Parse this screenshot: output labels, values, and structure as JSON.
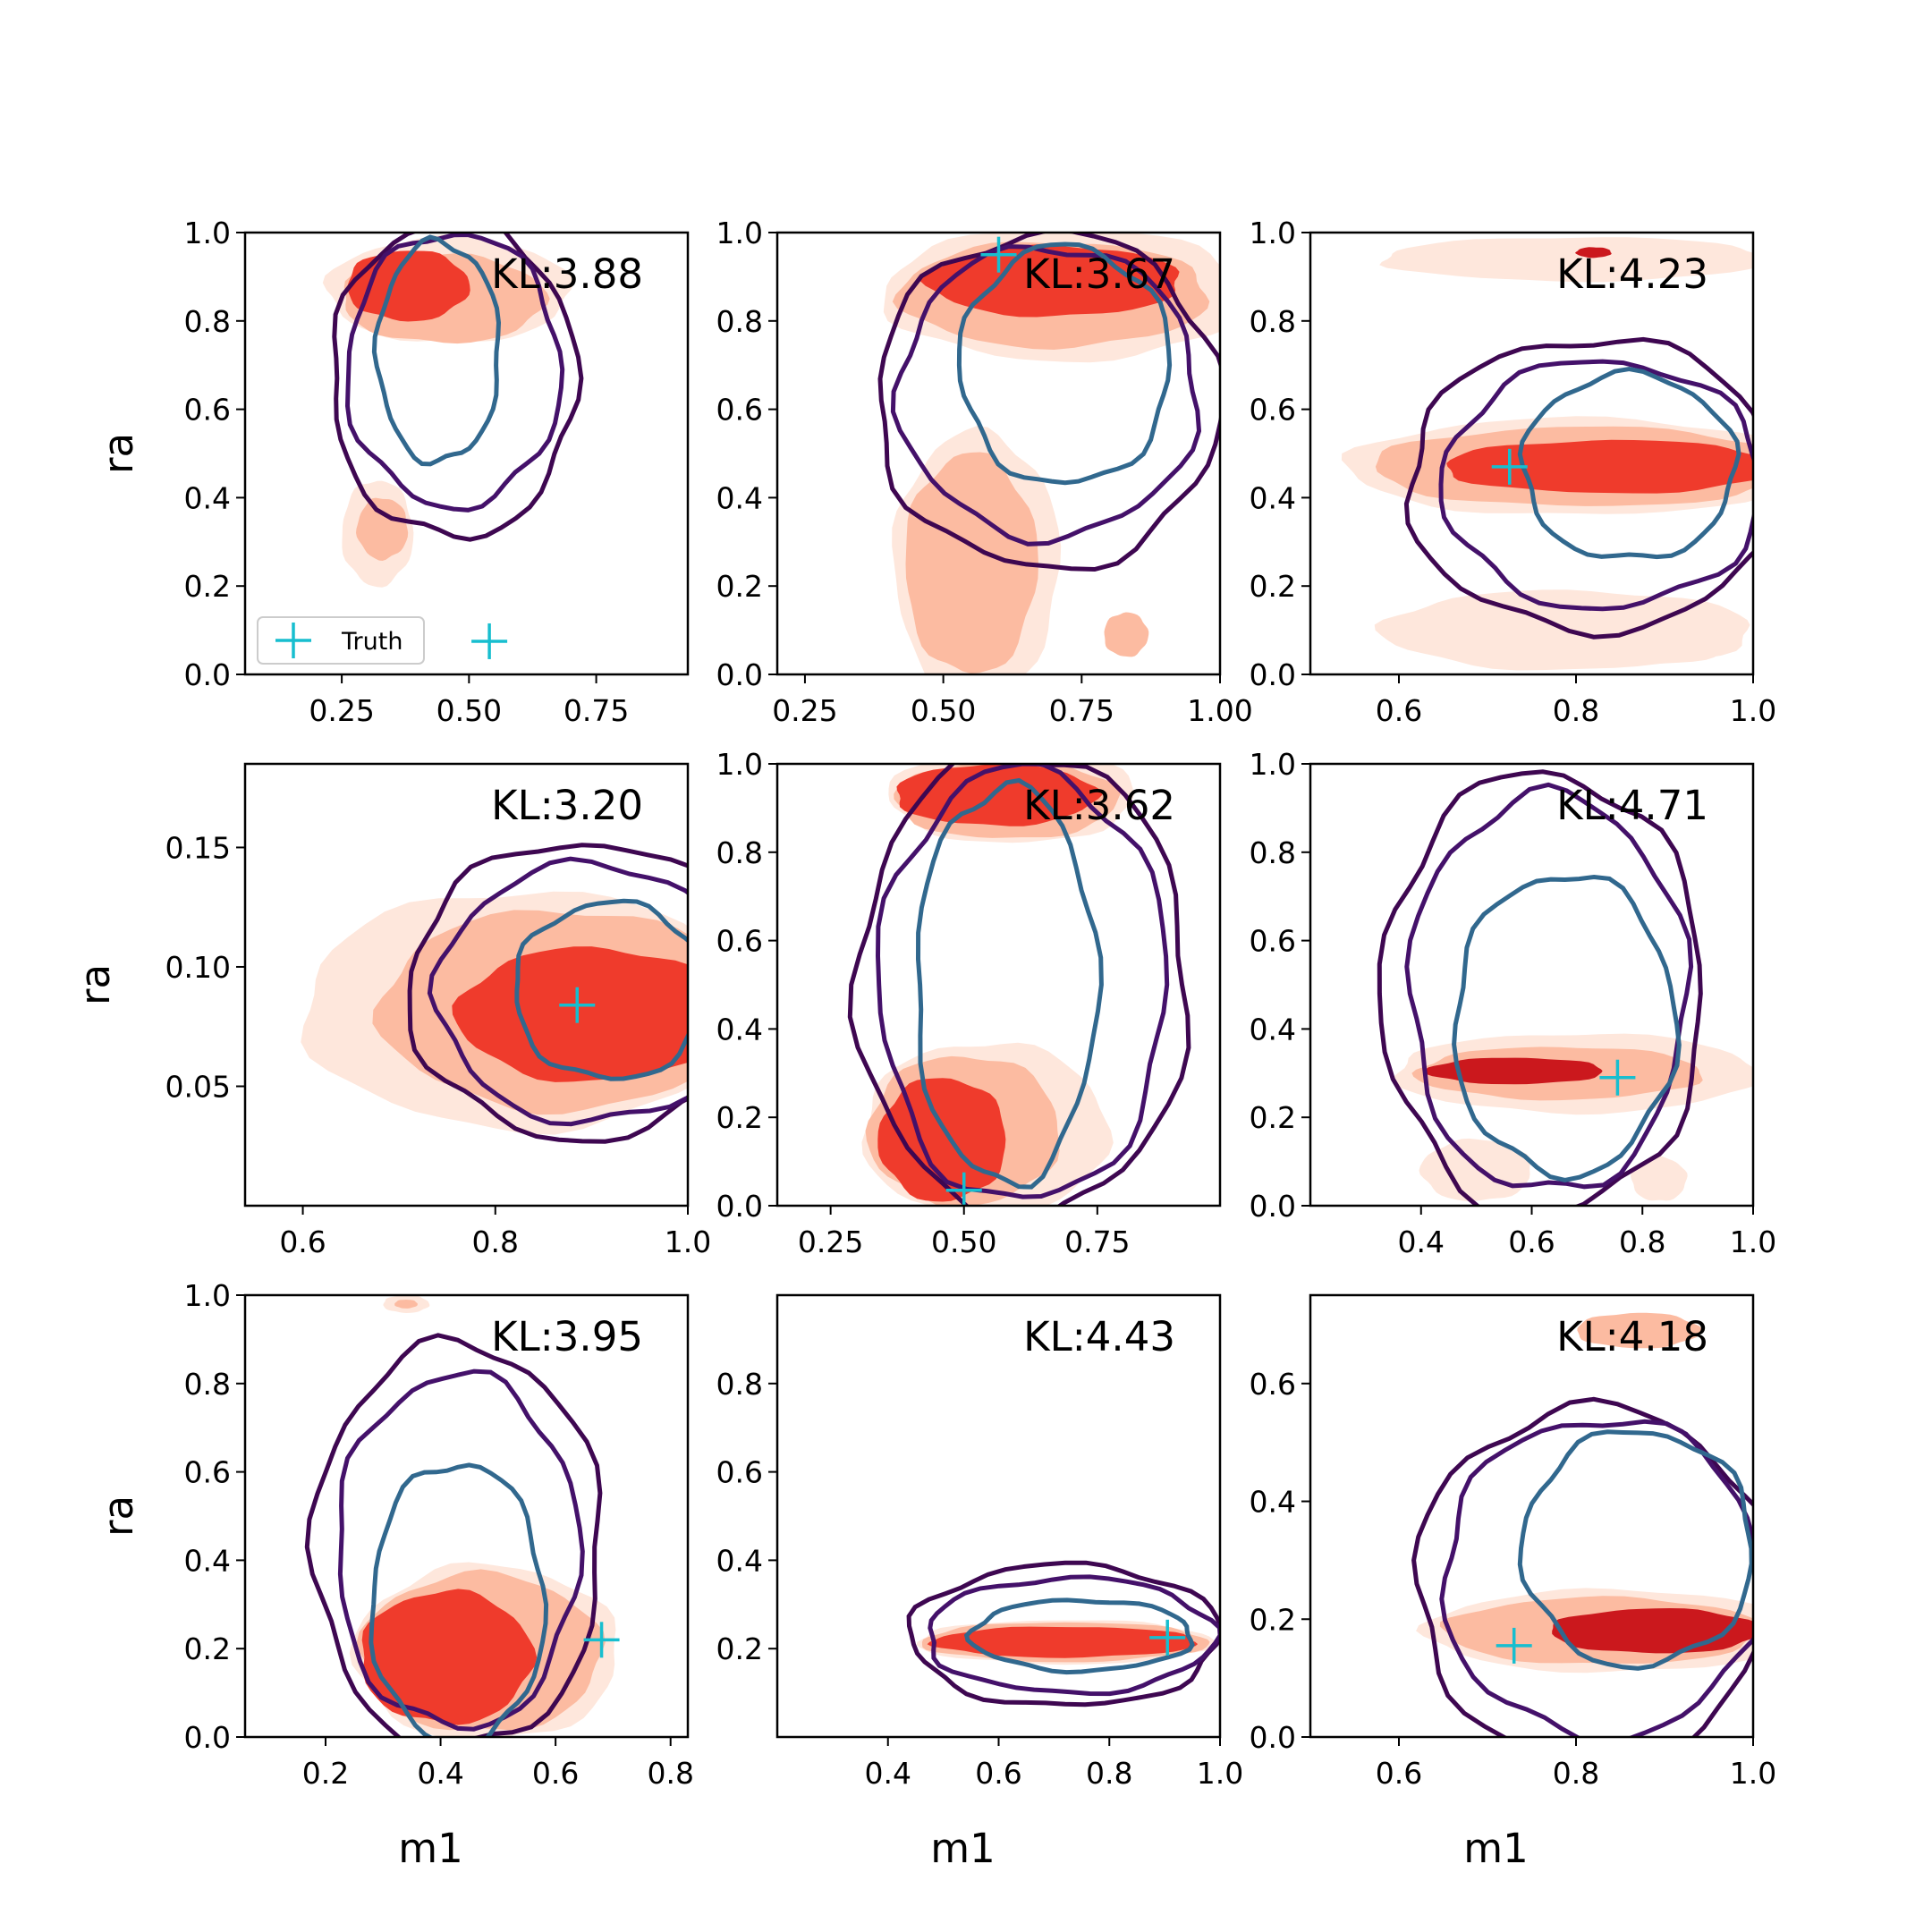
{
  "figure": {
    "legend_label": "Truth",
    "legend_placement": "lower-left",
    "legend_panel": 0
  },
  "colors": {
    "fill_levels": [
      "#fee7dc",
      "#fcbba1",
      "#ef3b2c",
      "#cb181d"
    ],
    "contour_levels": [
      "#3e0751",
      "#44116a",
      "#31688e"
    ],
    "truth_marker": "#17becf"
  },
  "chart_data": [
    {
      "type": "contour",
      "xlabel": "",
      "ylabel": "ra",
      "xlim": [
        0.06,
        0.93
      ],
      "ylim": [
        0,
        1
      ],
      "xticks": [
        "0.25",
        "0.50",
        "0.75"
      ],
      "xtick_values": [
        0.25,
        0.5,
        0.75
      ],
      "yticks": [
        "0.0",
        "0.2",
        "0.4",
        "0.6",
        "0.8",
        "1.0"
      ],
      "ytick_values": [
        0,
        0.2,
        0.4,
        0.6,
        0.8,
        1.0
      ],
      "kl_label": "KL:3.88",
      "truth": {
        "x": 0.54,
        "y": 0.075
      },
      "fills": [
        {
          "level": 0,
          "cx": 0.46,
          "cy": 0.87,
          "rx": 0.24,
          "ry": 0.12
        },
        {
          "level": 1,
          "cx": 0.45,
          "cy": 0.85,
          "rx": 0.2,
          "ry": 0.1
        },
        {
          "level": 2,
          "cx": 0.38,
          "cy": 0.88,
          "rx": 0.12,
          "ry": 0.08
        },
        {
          "level": 0,
          "cx": 0.32,
          "cy": 0.32,
          "rx": 0.07,
          "ry": 0.12
        },
        {
          "level": 1,
          "cx": 0.33,
          "cy": 0.33,
          "rx": 0.05,
          "ry": 0.07
        }
      ],
      "contours": [
        {
          "level": 0,
          "cx": 0.47,
          "cy": 0.67,
          "rx": 0.24,
          "ry": 0.36
        },
        {
          "level": 1,
          "cx": 0.47,
          "cy": 0.69,
          "rx": 0.21,
          "ry": 0.31
        },
        {
          "level": 2,
          "cx": 0.44,
          "cy": 0.73,
          "rx": 0.12,
          "ry": 0.25
        }
      ]
    },
    {
      "type": "contour",
      "xlabel": "",
      "ylabel": "",
      "xlim": [
        0.2,
        1.0
      ],
      "ylim": [
        0,
        1
      ],
      "xticks": [
        "0.25",
        "0.50",
        "0.75",
        "1.00"
      ],
      "xtick_values": [
        0.25,
        0.5,
        0.75,
        1.0
      ],
      "yticks": [
        "0.0",
        "0.2",
        "0.4",
        "0.6",
        "0.8",
        "1.0"
      ],
      "ytick_values": [
        0,
        0.2,
        0.4,
        0.6,
        0.8,
        1.0
      ],
      "kl_label": "KL:3.67",
      "truth": {
        "x": 0.6,
        "y": 0.95
      },
      "fills": [
        {
          "level": 0,
          "cx": 0.72,
          "cy": 0.86,
          "rx": 0.33,
          "ry": 0.15
        },
        {
          "level": 1,
          "cx": 0.7,
          "cy": 0.86,
          "rx": 0.28,
          "ry": 0.12
        },
        {
          "level": 2,
          "cx": 0.7,
          "cy": 0.89,
          "rx": 0.23,
          "ry": 0.08
        },
        {
          "level": 0,
          "cx": 0.56,
          "cy": 0.25,
          "rx": 0.15,
          "ry": 0.3
        },
        {
          "level": 1,
          "cx": 0.55,
          "cy": 0.25,
          "rx": 0.12,
          "ry": 0.25
        },
        {
          "level": 1,
          "cx": 0.83,
          "cy": 0.09,
          "rx": 0.04,
          "ry": 0.05
        }
      ],
      "contours": [
        {
          "level": 0,
          "cx": 0.69,
          "cy": 0.62,
          "rx": 0.31,
          "ry": 0.38
        },
        {
          "level": 1,
          "cx": 0.69,
          "cy": 0.64,
          "rx": 0.27,
          "ry": 0.33
        },
        {
          "level": 2,
          "cx": 0.72,
          "cy": 0.7,
          "rx": 0.19,
          "ry": 0.27
        }
      ]
    },
    {
      "type": "contour",
      "xlabel": "",
      "ylabel": "",
      "xlim": [
        0.5,
        1.0
      ],
      "ylim": [
        0,
        1
      ],
      "xticks": [
        "0.6",
        "0.8",
        "1.0"
      ],
      "xtick_values": [
        0.6,
        0.8,
        1.0
      ],
      "yticks": [
        "0.0",
        "0.2",
        "0.4",
        "0.6",
        "0.8",
        "1.0"
      ],
      "ytick_values": [
        0,
        0.2,
        0.4,
        0.6,
        0.8,
        1.0
      ],
      "kl_label": "KL:4.23",
      "truth": {
        "x": 0.725,
        "y": 0.47
      },
      "fills": [
        {
          "level": 0,
          "cx": 0.8,
          "cy": 0.47,
          "rx": 0.26,
          "ry": 0.11
        },
        {
          "level": 1,
          "cx": 0.81,
          "cy": 0.47,
          "rx": 0.24,
          "ry": 0.09
        },
        {
          "level": 2,
          "cx": 0.84,
          "cy": 0.47,
          "rx": 0.19,
          "ry": 0.06
        },
        {
          "level": 0,
          "cx": 0.8,
          "cy": 0.94,
          "rx": 0.22,
          "ry": 0.05
        },
        {
          "level": 3,
          "cx": 0.82,
          "cy": 0.955,
          "rx": 0.02,
          "ry": 0.012
        },
        {
          "level": 0,
          "cx": 0.79,
          "cy": 0.1,
          "rx": 0.21,
          "ry": 0.09
        },
        {
          "level": 0,
          "cx": 0.85,
          "cy": 0.07,
          "rx": 0.13,
          "ry": 0.05
        }
      ],
      "contours": [
        {
          "level": 0,
          "cx": 0.82,
          "cy": 0.43,
          "rx": 0.21,
          "ry": 0.33
        },
        {
          "level": 1,
          "cx": 0.83,
          "cy": 0.43,
          "rx": 0.18,
          "ry": 0.28
        },
        {
          "level": 2,
          "cx": 0.86,
          "cy": 0.47,
          "rx": 0.12,
          "ry": 0.21
        }
      ]
    },
    {
      "type": "contour",
      "xlabel": "",
      "ylabel": "ra",
      "xlim": [
        0.54,
        1.0
      ],
      "ylim": [
        0.0,
        0.185
      ],
      "xticks": [
        "0.6",
        "0.8",
        "1.0"
      ],
      "xtick_values": [
        0.6,
        0.8,
        1.0
      ],
      "yticks": [
        "0.05",
        "0.10",
        "0.15"
      ],
      "ytick_values": [
        0.05,
        0.1,
        0.15
      ],
      "kl_label": "KL:3.20",
      "truth": {
        "x": 0.885,
        "y": 0.084
      },
      "fills": [
        {
          "level": 0,
          "cx": 0.83,
          "cy": 0.082,
          "rx": 0.23,
          "ry": 0.05
        },
        {
          "level": 1,
          "cx": 0.87,
          "cy": 0.082,
          "rx": 0.19,
          "ry": 0.042
        },
        {
          "level": 2,
          "cx": 0.9,
          "cy": 0.08,
          "rx": 0.14,
          "ry": 0.028
        }
      ],
      "contours": [
        {
          "level": 0,
          "cx": 0.89,
          "cy": 0.09,
          "rx": 0.18,
          "ry": 0.062
        },
        {
          "level": 1,
          "cx": 0.9,
          "cy": 0.089,
          "rx": 0.16,
          "ry": 0.054
        },
        {
          "level": 2,
          "cx": 0.92,
          "cy": 0.09,
          "rx": 0.1,
          "ry": 0.037
        }
      ]
    },
    {
      "type": "contour",
      "xlabel": "",
      "ylabel": "",
      "xlim": [
        0.15,
        0.98
      ],
      "ylim": [
        0,
        1
      ],
      "xticks": [
        "0.25",
        "0.50",
        "0.75"
      ],
      "xtick_values": [
        0.25,
        0.5,
        0.75
      ],
      "yticks": [
        "0.0",
        "0.2",
        "0.4",
        "0.6",
        "0.8",
        "1.0"
      ],
      "ytick_values": [
        0,
        0.2,
        0.4,
        0.6,
        0.8,
        1.0
      ],
      "kl_label": "KL:3.62",
      "truth": {
        "x": 0.5,
        "y": 0.035
      },
      "fills": [
        {
          "level": 0,
          "cx": 0.59,
          "cy": 0.93,
          "rx": 0.23,
          "ry": 0.11
        },
        {
          "level": 1,
          "cx": 0.58,
          "cy": 0.92,
          "rx": 0.21,
          "ry": 0.09
        },
        {
          "level": 2,
          "cx": 0.56,
          "cy": 0.93,
          "rx": 0.19,
          "ry": 0.07
        },
        {
          "level": 0,
          "cx": 0.54,
          "cy": 0.17,
          "rx": 0.23,
          "ry": 0.2
        },
        {
          "level": 1,
          "cx": 0.5,
          "cy": 0.17,
          "rx": 0.18,
          "ry": 0.17
        },
        {
          "level": 2,
          "cx": 0.46,
          "cy": 0.15,
          "rx": 0.12,
          "ry": 0.14
        }
      ],
      "contours": [
        {
          "level": 0,
          "cx": 0.61,
          "cy": 0.5,
          "rx": 0.31,
          "ry": 0.53
        },
        {
          "level": 1,
          "cx": 0.61,
          "cy": 0.5,
          "rx": 0.27,
          "ry": 0.49
        },
        {
          "level": 2,
          "cx": 0.58,
          "cy": 0.5,
          "rx": 0.17,
          "ry": 0.45
        }
      ]
    },
    {
      "type": "contour",
      "xlabel": "",
      "ylabel": "",
      "xlim": [
        0.2,
        1.0
      ],
      "ylim": [
        0,
        1
      ],
      "xticks": [
        "0.4",
        "0.6",
        "0.8",
        "1.0"
      ],
      "xtick_values": [
        0.4,
        0.6,
        0.8,
        1.0
      ],
      "yticks": [
        "0.0",
        "0.2",
        "0.4",
        "0.6",
        "0.8",
        "1.0"
      ],
      "ytick_values": [
        0,
        0.2,
        0.4,
        0.6,
        0.8,
        1.0
      ],
      "kl_label": "KL:4.71",
      "truth": {
        "x": 0.755,
        "y": 0.29
      },
      "fills": [
        {
          "level": 0,
          "cx": 0.68,
          "cy": 0.3,
          "rx": 0.33,
          "ry": 0.09
        },
        {
          "level": 1,
          "cx": 0.65,
          "cy": 0.3,
          "rx": 0.26,
          "ry": 0.06
        },
        {
          "level": 3,
          "cx": 0.57,
          "cy": 0.305,
          "rx": 0.16,
          "ry": 0.03
        },
        {
          "level": 0,
          "cx": 0.5,
          "cy": 0.08,
          "rx": 0.1,
          "ry": 0.07
        },
        {
          "level": 0,
          "cx": 0.83,
          "cy": 0.06,
          "rx": 0.05,
          "ry": 0.05
        }
      ],
      "contours": [
        {
          "level": 0,
          "cx": 0.62,
          "cy": 0.48,
          "rx": 0.29,
          "ry": 0.5
        },
        {
          "level": 1,
          "cx": 0.63,
          "cy": 0.48,
          "rx": 0.25,
          "ry": 0.45
        },
        {
          "level": 2,
          "cx": 0.66,
          "cy": 0.41,
          "rx": 0.2,
          "ry": 0.34
        }
      ]
    },
    {
      "type": "contour",
      "xlabel": "m1",
      "ylabel": "ra",
      "xlim": [
        0.06,
        0.83
      ],
      "ylim": [
        0,
        1
      ],
      "xticks": [
        "0.2",
        "0.4",
        "0.6",
        "0.8"
      ],
      "xtick_values": [
        0.2,
        0.4,
        0.6,
        0.8
      ],
      "yticks": [
        "0.0",
        "0.2",
        "0.4",
        "0.6",
        "0.8",
        "1.0"
      ],
      "ytick_values": [
        0,
        0.2,
        0.4,
        0.6,
        0.8,
        1.0
      ],
      "kl_label": "KL:3.95",
      "truth": {
        "x": 0.68,
        "y": 0.22
      },
      "fills": [
        {
          "level": 0,
          "cx": 0.48,
          "cy": 0.19,
          "rx": 0.23,
          "ry": 0.2
        },
        {
          "level": 1,
          "cx": 0.47,
          "cy": 0.19,
          "rx": 0.21,
          "ry": 0.18
        },
        {
          "level": 2,
          "cx": 0.41,
          "cy": 0.18,
          "rx": 0.15,
          "ry": 0.15
        },
        {
          "level": 0,
          "cx": 0.34,
          "cy": 0.98,
          "rx": 0.04,
          "ry": 0.02
        },
        {
          "level": 1,
          "cx": 0.34,
          "cy": 0.98,
          "rx": 0.02,
          "ry": 0.01
        }
      ],
      "contours": [
        {
          "level": 0,
          "cx": 0.43,
          "cy": 0.43,
          "rx": 0.25,
          "ry": 0.46
        },
        {
          "level": 1,
          "cx": 0.43,
          "cy": 0.42,
          "rx": 0.21,
          "ry": 0.4
        },
        {
          "level": 2,
          "cx": 0.43,
          "cy": 0.3,
          "rx": 0.15,
          "ry": 0.32
        }
      ]
    },
    {
      "type": "contour",
      "xlabel": "m1",
      "ylabel": "",
      "xlim": [
        0.2,
        1.0
      ],
      "ylim": [
        0,
        1
      ],
      "xticks": [
        "0.4",
        "0.6",
        "0.8",
        "1.0"
      ],
      "xtick_values": [
        0.4,
        0.6,
        0.8,
        1.0
      ],
      "yticks": [
        "0.2",
        "0.4",
        "0.6",
        "0.8"
      ],
      "ytick_values": [
        0.2,
        0.4,
        0.6,
        0.8
      ],
      "kl_label": "KL:4.43",
      "truth": {
        "x": 0.905,
        "y": 0.225
      },
      "fills": [
        {
          "level": 0,
          "cx": 0.72,
          "cy": 0.215,
          "rx": 0.27,
          "ry": 0.05
        },
        {
          "level": 1,
          "cx": 0.72,
          "cy": 0.215,
          "rx": 0.26,
          "ry": 0.045
        },
        {
          "level": 2,
          "cx": 0.72,
          "cy": 0.215,
          "rx": 0.24,
          "ry": 0.035
        }
      ],
      "contours": [
        {
          "level": 0,
          "cx": 0.72,
          "cy": 0.23,
          "rx": 0.28,
          "ry": 0.16
        },
        {
          "level": 1,
          "cx": 0.73,
          "cy": 0.23,
          "rx": 0.26,
          "ry": 0.13
        },
        {
          "level": 2,
          "cx": 0.75,
          "cy": 0.23,
          "rx": 0.2,
          "ry": 0.08
        }
      ]
    },
    {
      "type": "contour",
      "xlabel": "m1",
      "ylabel": "",
      "xlim": [
        0.5,
        1.0
      ],
      "ylim": [
        0,
        0.75
      ],
      "xticks": [
        "0.6",
        "0.8",
        "1.0"
      ],
      "xtick_values": [
        0.6,
        0.8,
        1.0
      ],
      "yticks": [
        "0.0",
        "0.2",
        "0.4",
        "0.6"
      ],
      "ytick_values": [
        0,
        0.2,
        0.4,
        0.6
      ],
      "kl_label": "KL:4.18",
      "truth": {
        "x": 0.73,
        "y": 0.155
      },
      "fills": [
        {
          "level": 0,
          "cx": 0.84,
          "cy": 0.18,
          "rx": 0.21,
          "ry": 0.07
        },
        {
          "level": 1,
          "cx": 0.83,
          "cy": 0.18,
          "rx": 0.18,
          "ry": 0.057
        },
        {
          "level": 3,
          "cx": 0.89,
          "cy": 0.18,
          "rx": 0.12,
          "ry": 0.038
        },
        {
          "level": 1,
          "cx": 0.87,
          "cy": 0.69,
          "rx": 0.07,
          "ry": 0.03
        }
      ],
      "contours": [
        {
          "level": 0,
          "cx": 0.82,
          "cy": 0.26,
          "rx": 0.2,
          "ry": 0.3
        },
        {
          "level": 1,
          "cx": 0.83,
          "cy": 0.27,
          "rx": 0.18,
          "ry": 0.27
        },
        {
          "level": 2,
          "cx": 0.87,
          "cy": 0.32,
          "rx": 0.13,
          "ry": 0.2
        }
      ]
    }
  ]
}
